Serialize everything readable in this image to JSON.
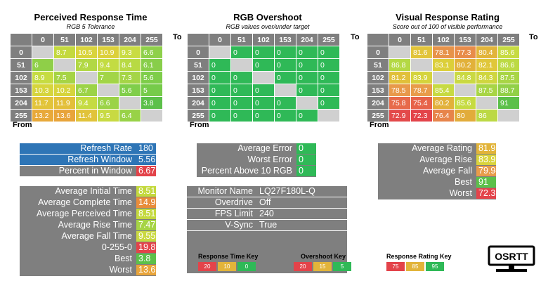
{
  "headers": [
    "0",
    "51",
    "102",
    "153",
    "204",
    "255"
  ],
  "labels": {
    "to": "To",
    "from": "From"
  },
  "panels": [
    {
      "id": "response",
      "title": "Perceived Response Time",
      "subtitle": "RGB 5 Tolerance",
      "rows": [
        [
          "",
          "8.7",
          "10.5",
          "10.9",
          "9.3",
          "6.6"
        ],
        [
          "6",
          "",
          "7.9",
          "9.4",
          "8.4",
          "6.1"
        ],
        [
          "8.9",
          "7.5",
          "",
          "7",
          "7.3",
          "5.6"
        ],
        [
          "10.3",
          "10.2",
          "6.7",
          "",
          "5.6",
          "5"
        ],
        [
          "11.7",
          "11.9",
          "9.4",
          "6.6",
          "",
          "3.8"
        ],
        [
          "13.2",
          "13.6",
          "11.4",
          "9.5",
          "6.4",
          ""
        ]
      ],
      "colors": [
        [
          "",
          "#c4d93e",
          "#d9d43c",
          "#dcd03a",
          "#c9dc42",
          "#8ed04a"
        ],
        [
          "#8fcf48",
          "",
          "#b2d845",
          "#c3dc42",
          "#b8da44",
          "#88ce4a"
        ],
        [
          "#c6dc42",
          "#a6d445",
          "",
          "#a2d547",
          "#a5d547",
          "#7ecd4a"
        ],
        [
          "#d6d53d",
          "#d6d43c",
          "#9cd347",
          "",
          "#80ce4a",
          "#76cb4a"
        ],
        [
          "#e2c43a",
          "#e3bf39",
          "#c5db42",
          "#9bd347",
          "",
          "#5cc04a"
        ],
        [
          "#e8a93a",
          "#e8a43a",
          "#e1c33a",
          "#c8da42",
          "#98d247",
          ""
        ]
      ]
    },
    {
      "id": "overshoot",
      "title": "RGB Overshoot",
      "subtitle": "RGB values over/under target",
      "rows": [
        [
          "",
          "0",
          "0",
          "0",
          "0",
          "0"
        ],
        [
          "0",
          "",
          "0",
          "0",
          "0",
          "0"
        ],
        [
          "0",
          "0",
          "",
          "0",
          "0",
          "0"
        ],
        [
          "0",
          "0",
          "0",
          "",
          "0",
          "0"
        ],
        [
          "0",
          "0",
          "0",
          "0",
          "",
          "0"
        ],
        [
          "0",
          "0",
          "0",
          "0",
          "0",
          ""
        ]
      ],
      "colors": "#2fb957"
    },
    {
      "id": "rating",
      "title": "Visual Response Rating",
      "subtitle": "Score out of 100 of visible performance",
      "rows": [
        [
          "",
          "81.6",
          "78.1",
          "77.3",
          "80.4",
          "85.6"
        ],
        [
          "86.8",
          "",
          "83.1",
          "80.2",
          "82.1",
          "86.6"
        ],
        [
          "81.2",
          "83.9",
          "",
          "84.8",
          "84.3",
          "87.5"
        ],
        [
          "78.5",
          "78.7",
          "85.4",
          "",
          "87.5",
          "88.7"
        ],
        [
          "75.8",
          "75.4",
          "80.2",
          "85.6",
          "",
          "91"
        ],
        [
          "72.9",
          "72.3",
          "76.4",
          "80",
          "86",
          ""
        ]
      ],
      "colors": [
        [
          "",
          "#e2c43a",
          "#e7934a",
          "#e88c4a",
          "#e2b43a",
          "#c7db42"
        ],
        [
          "#b4d944",
          "",
          "#dccf3a",
          "#e2b13a",
          "#e0c73a",
          "#bcda44"
        ],
        [
          "#e1c03a",
          "#d5d43c",
          "",
          "#cad942",
          "#cfd63f",
          "#a8d546"
        ],
        [
          "#e8994a",
          "#e89c4a",
          "#c7da42",
          "",
          "#a8d546",
          "#92d048"
        ],
        [
          "#e76a4a",
          "#e7634a",
          "#e2b13a",
          "#c6db42",
          "",
          "#5cc04a"
        ],
        [
          "#e3494a",
          "#e3434a",
          "#e7844a",
          "#e2ac3a",
          "#bcd944",
          ""
        ]
      ]
    }
  ],
  "stats": {
    "refresh": [
      {
        "label": "Refresh Rate",
        "value": "180",
        "labelBg": "#2e75b6",
        "valBg": "#2e75b6"
      },
      {
        "label": "Refresh Window",
        "value": "5.56",
        "labelBg": "#2e75b6",
        "valBg": "#2e75b6"
      },
      {
        "label": "Percent in Window",
        "value": "6.67",
        "labelBg": "#7f7f7f",
        "valBg": "#e3434a"
      }
    ],
    "error": [
      {
        "label": "Average Error",
        "value": "0",
        "valBg": "#2fb957"
      },
      {
        "label": "Worst Error",
        "value": "0",
        "valBg": "#2fb957"
      },
      {
        "label": "Percent Above 10 RGB",
        "value": "0",
        "valBg": "#2fb957"
      }
    ],
    "rating": [
      {
        "label": "Average Rating",
        "value": "81.93",
        "valBg": "#e2b43a"
      },
      {
        "label": "Average Rise",
        "value": "83.92",
        "valBg": "#d9d33c"
      },
      {
        "label": "Average Fall",
        "value": "79.94",
        "valBg": "#e89c4a"
      },
      {
        "label": "Best",
        "value": "91",
        "valBg": "#5cc04a"
      },
      {
        "label": "Worst",
        "value": "72.3",
        "valBg": "#e3434a"
      }
    ],
    "times": [
      {
        "label": "Average Initial Time",
        "value": "8.51",
        "valBg": "#c4d93e"
      },
      {
        "label": "Average Complete Time",
        "value": "14.92",
        "valBg": "#e88c3a"
      },
      {
        "label": "Average Perceived Time",
        "value": "8.51",
        "valBg": "#c4d93e"
      },
      {
        "label": "Average Rise Time",
        "value": "7.47",
        "valBg": "#a6d445"
      },
      {
        "label": "Average Fall Time",
        "value": "9.55",
        "valBg": "#cad942"
      },
      {
        "label": "0-255-0",
        "value": "19.8",
        "valBg": "#e3434a"
      },
      {
        "label": "Best",
        "value": "3.8",
        "valBg": "#5cc04a"
      },
      {
        "label": "Worst",
        "value": "13.6",
        "valBg": "#e8a43a"
      }
    ],
    "monitor": [
      {
        "label": "Monitor Name",
        "value": "LQ27F180L-Q"
      },
      {
        "label": "Overdrive",
        "value": "Off"
      },
      {
        "label": "FPS Limit",
        "value": "240"
      },
      {
        "label": "V-Sync",
        "value": "True"
      }
    ]
  },
  "keys": [
    {
      "title": "Response Time Key",
      "cells": [
        {
          "v": "20",
          "c": "#e3434a"
        },
        {
          "v": "10",
          "c": "#e2b43a"
        },
        {
          "v": "0",
          "c": "#2fb957"
        }
      ]
    },
    {
      "title": "Overshoot Key",
      "cells": [
        {
          "v": "20",
          "c": "#e3434a"
        },
        {
          "v": "15",
          "c": "#e2b43a"
        },
        {
          "v": "5",
          "c": "#2fb957"
        }
      ]
    },
    {
      "title": "Response Rating Key",
      "cells": [
        {
          "v": "75",
          "c": "#e3434a"
        },
        {
          "v": "85",
          "c": "#e2b43a"
        },
        {
          "v": "95",
          "c": "#2fb957"
        }
      ]
    }
  ],
  "logo": {
    "text": "OSRTT"
  }
}
